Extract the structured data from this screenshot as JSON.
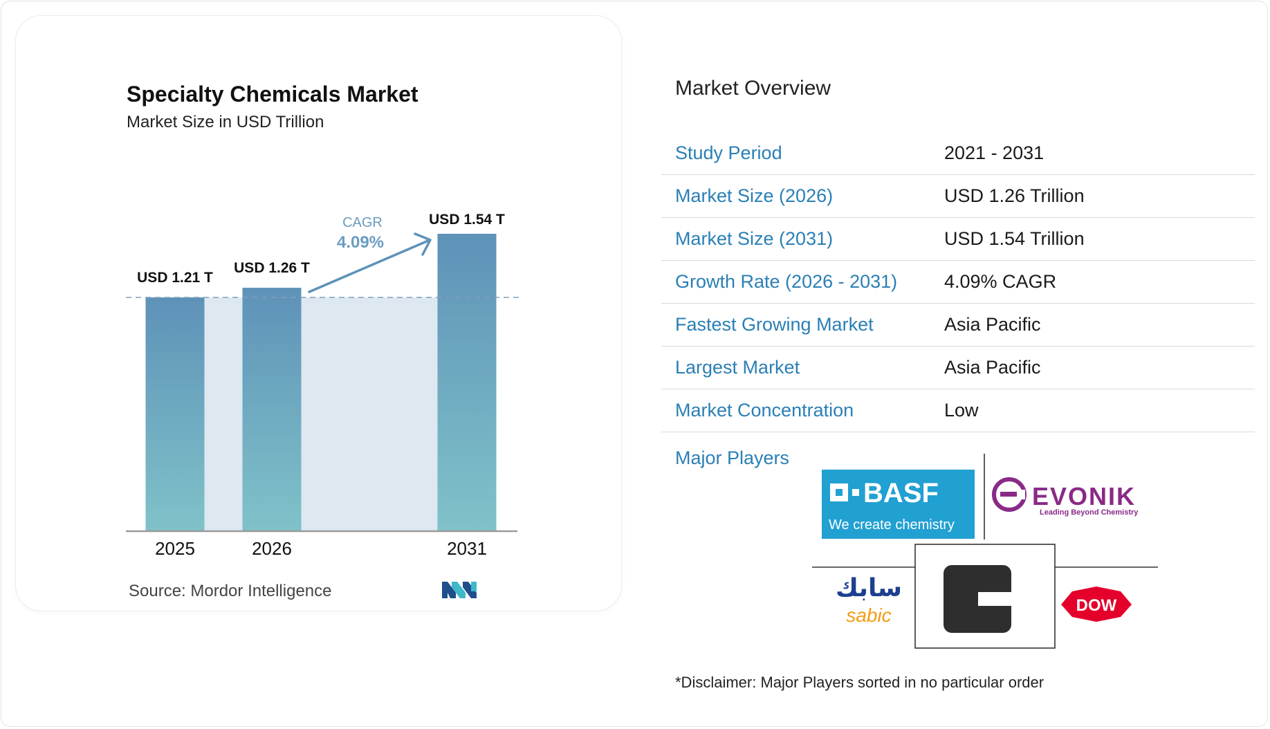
{
  "chart_data": {
    "type": "bar",
    "title": "Specialty Chemicals Market",
    "subtitle": "Market Size in USD Trillion",
    "categories": [
      "2025",
      "2026",
      "2031"
    ],
    "values": [
      1.21,
      1.26,
      1.54
    ],
    "data_labels": [
      "USD 1.21 T",
      "USD 1.26 T",
      "USD 1.54 T"
    ],
    "cagr_label": "CAGR",
    "cagr_value": "4.09%",
    "source": "Source:  Mordor Intelligence",
    "colors": {
      "bar_top": "#5e92b8",
      "bar_bottom": "#80c2c9",
      "area": "#dde8f1",
      "arrow": "#5e92b8",
      "cagr_text": "#6b9cc0"
    }
  },
  "overview": {
    "title": "Market Overview",
    "rows": [
      {
        "label": "Study Period",
        "value": "2021 - 2031"
      },
      {
        "label": "Market Size (2026)",
        "value": "USD 1.26 Trillion"
      },
      {
        "label": "Market Size (2031)",
        "value": "USD 1.54 Trillion"
      },
      {
        "label": "Growth Rate (2026 - 2031)",
        "value": "4.09% CAGR"
      },
      {
        "label": "Fastest Growing Market",
        "value": "Asia Pacific"
      },
      {
        "label": "Largest Market",
        "value": "Asia Pacific"
      },
      {
        "label": "Market Concentration",
        "value": "Low"
      }
    ],
    "major_players_label": "Major Players",
    "players": [
      {
        "name": "BASF",
        "tagline": "We create chemistry",
        "icon": "basf-logo"
      },
      {
        "name": "EVONIK",
        "tagline": "Leading Beyond Chemistry",
        "icon": "evonik-logo"
      },
      {
        "name": "sabic",
        "arabic": "سابك",
        "icon": "sabic-logo"
      },
      {
        "name": "Clariant",
        "icon": "clariant-logo"
      },
      {
        "name": "DOW",
        "icon": "dow-logo"
      }
    ],
    "disclaimer": "*Disclaimer: Major Players sorted in no particular order",
    "colors": {
      "label": "#2a7fb5",
      "basf_blue": "#21a0d2",
      "evonik_purple": "#8a2a87",
      "dow_red": "#e4002b",
      "sabic_blue": "#1d3f8f",
      "sabic_orange": "#f39c12"
    }
  }
}
